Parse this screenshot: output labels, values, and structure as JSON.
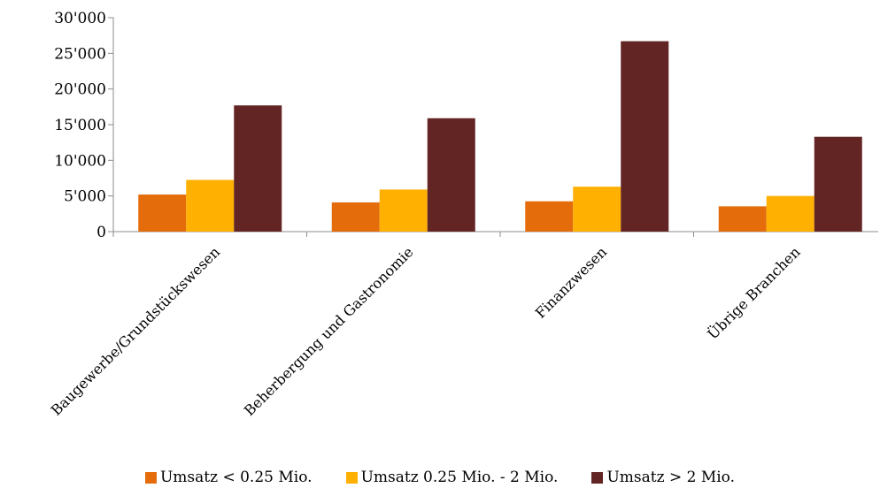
{
  "chart_data": {
    "type": "bar",
    "categories": [
      "Baugewerbe/Grundstückswesen",
      "Beherbergung und Gastronomie",
      "Finanzwesen",
      "Übrige Branchen"
    ],
    "series": [
      {
        "name": "Umsatz < 0.25 Mio.",
        "color": "#e46c0a",
        "values": [
          5200,
          4100,
          4250,
          3550
        ]
      },
      {
        "name": "Umsatz 0.25 Mio. - 2 Mio.",
        "color": "#ffb000",
        "values": [
          7250,
          5900,
          6300,
          5000
        ]
      },
      {
        "name": "Umsatz > 2 Mio.",
        "color": "#632523",
        "values": [
          17700,
          15900,
          26700,
          13300
        ]
      }
    ],
    "yticks": [
      "0",
      "5'000",
      "10'000",
      "15'000",
      "20'000",
      "25'000",
      "30'000"
    ],
    "ytick_values": [
      0,
      5000,
      10000,
      15000,
      20000,
      25000,
      30000
    ],
    "ylim": [
      0,
      30000
    ],
    "grid": false,
    "legend_position": "bottom"
  }
}
